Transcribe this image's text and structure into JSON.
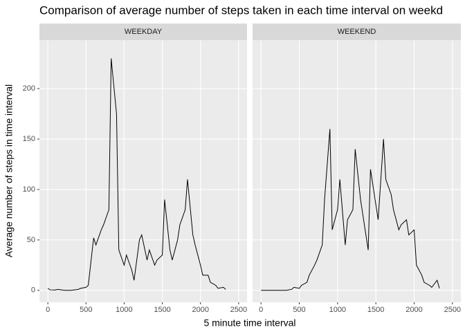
{
  "chart_data": {
    "type": "line",
    "title": "Comparison of average number of steps taken in each time interval on weekd",
    "x_label": "5 minute time interval",
    "y_label": "Average number of steps in time interval",
    "color": "#000000",
    "xlim": [
      -110,
      2610
    ],
    "xticks": [
      0,
      500,
      1000,
      1500,
      2000,
      2500
    ],
    "ylim": [
      -11.8,
      248.1
    ],
    "yticks": [
      0,
      50,
      100,
      150,
      200
    ],
    "grid": true,
    "x": [
      0,
      30,
      100,
      130,
      200,
      230,
      300,
      330,
      400,
      430,
      500,
      530,
      600,
      630,
      700,
      730,
      800,
      830,
      900,
      930,
      1000,
      1030,
      1100,
      1130,
      1200,
      1230,
      1300,
      1330,
      1400,
      1430,
      1500,
      1530,
      1600,
      1630,
      1700,
      1730,
      1800,
      1830,
      1900,
      1930,
      2000,
      2030,
      2100,
      2130,
      2200,
      2230,
      2300,
      2330
    ],
    "panels": [
      {
        "name": "WEEKDAY",
        "values": [
          2,
          0.5,
          0.4,
          1,
          0.2,
          0,
          0,
          0.3,
          1,
          2,
          3,
          5,
          52,
          45,
          60,
          65,
          80,
          230,
          175,
          40,
          25,
          35,
          20,
          10,
          50,
          55,
          30,
          40,
          25,
          30,
          35,
          90,
          40,
          30,
          50,
          65,
          80,
          110,
          55,
          45,
          25,
          15,
          15,
          8,
          5,
          2,
          3,
          1
        ]
      },
      {
        "name": "WEEKEND",
        "values": [
          0,
          0,
          0,
          0,
          0,
          0,
          0,
          0,
          1,
          3,
          2,
          5,
          8,
          15,
          25,
          30,
          45,
          90,
          160,
          60,
          80,
          110,
          45,
          70,
          80,
          140,
          90,
          75,
          40,
          120,
          85,
          70,
          150,
          110,
          95,
          80,
          60,
          65,
          70,
          55,
          60,
          25,
          15,
          8,
          5,
          3,
          10,
          2
        ]
      }
    ]
  }
}
